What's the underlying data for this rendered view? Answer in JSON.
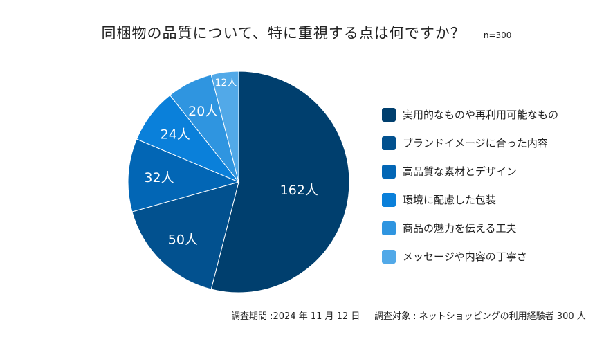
{
  "chart_data": {
    "type": "pie",
    "title": "同梱物の品質について、特に重視する点は何ですか？",
    "sample_size": "n=300",
    "unit": "人",
    "categories": [
      "実用的なものや再利用可能なもの",
      "ブランドイメージに合った内容",
      "高品質な素材とデザイン",
      "環境に配慮した包装",
      "商品の魅力を伝える工夫",
      "メッセージや内容の丁寧さ"
    ],
    "values": [
      162,
      50,
      32,
      24,
      20,
      12
    ],
    "data_labels": [
      "162人",
      "50人",
      "32人",
      "24人",
      "20人",
      "12人"
    ],
    "colors": [
      "#003f6e",
      "#02518f",
      "#0266b5",
      "#0a80da",
      "#2f95e0",
      "#52a9e8"
    ],
    "start_angle": "top",
    "direction": "clockwise",
    "legend_position": "right"
  },
  "footer": {
    "period": "調査期間 :2024 年 11 月 12 日",
    "target": "調査対象 : ネットショッピングの利用経験者 300 人"
  }
}
